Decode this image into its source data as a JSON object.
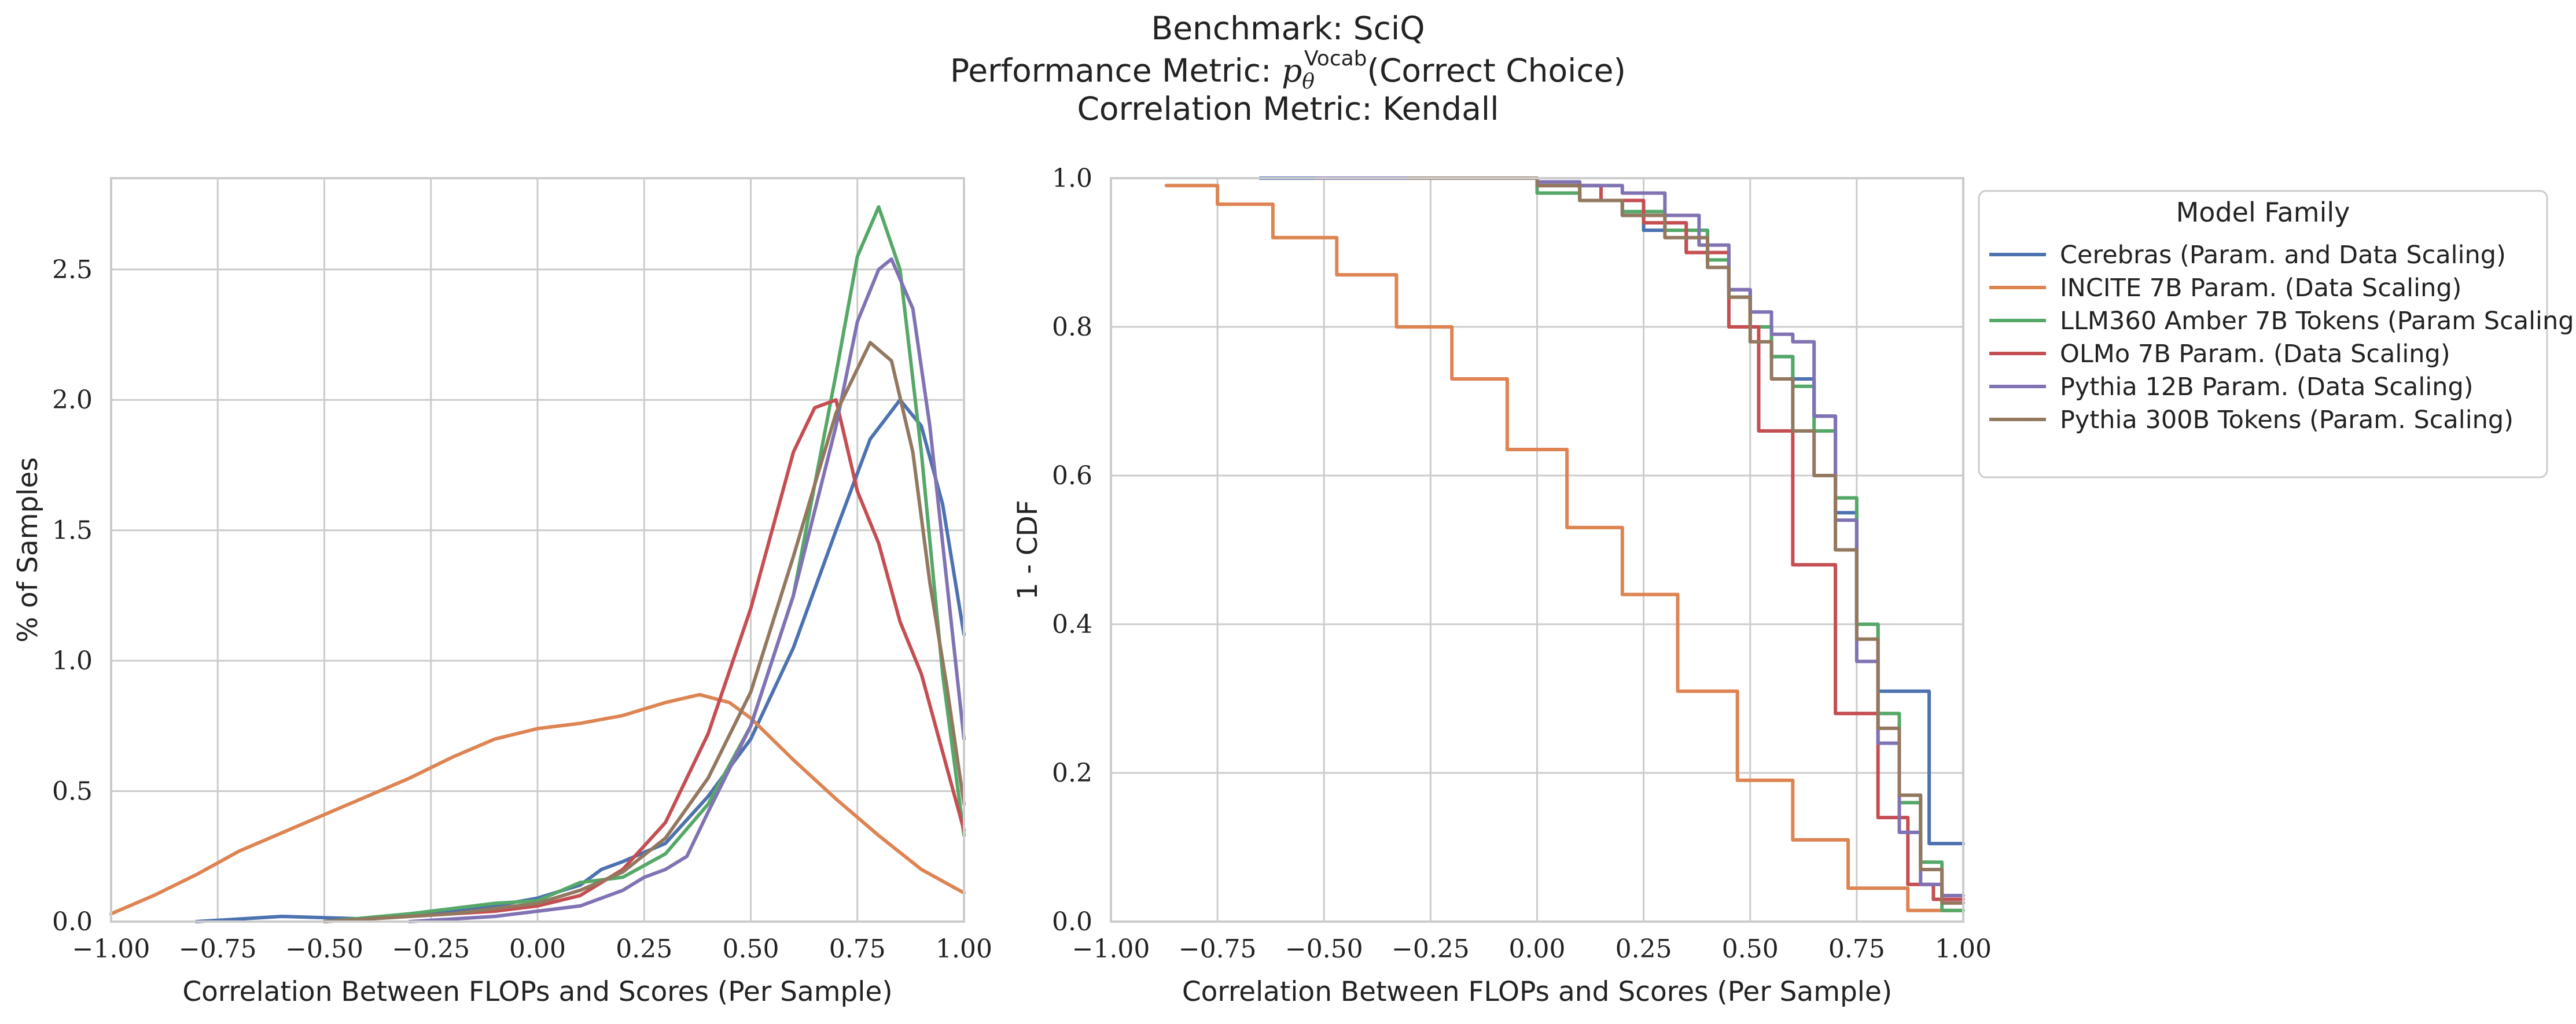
{
  "figure": {
    "title_lines": [
      "Benchmark: SciQ",
      "Performance Metric: p_θ^Vocab(Correct Choice)",
      "Correlation Metric: Kendall"
    ],
    "title_parts": {
      "line2_prefix": "Performance Metric: ",
      "symbol": "p",
      "subscript": "θ",
      "superscript": "Vocab",
      "line2_suffix": "(Correct Choice)"
    }
  },
  "legend": {
    "title": "Model Family",
    "placement": "right of second chart, top"
  },
  "chart_data": [
    {
      "type": "line",
      "name": "density",
      "xlabel": "Correlation Between FLOPs and Scores (Per Sample)",
      "ylabel": "% of Samples",
      "xlim": [
        -1.0,
        1.0
      ],
      "ylim": [
        0.0,
        2.85
      ],
      "xticks": [
        -1.0,
        -0.75,
        -0.5,
        -0.25,
        0.0,
        0.25,
        0.5,
        0.75,
        1.0
      ],
      "xtick_labels": [
        "−1.00",
        "−0.75",
        "−0.50",
        "−0.25",
        "0.00",
        "0.25",
        "0.50",
        "0.75",
        "1.00"
      ],
      "yticks": [
        0.0,
        0.5,
        1.0,
        1.5,
        2.0,
        2.5
      ],
      "ytick_labels": [
        "0.0",
        "0.5",
        "1.0",
        "1.5",
        "2.0",
        "2.5"
      ],
      "grid": true,
      "series": [
        {
          "name": "Cerebras (Param. and Data Scaling)",
          "color": "#4c72b0",
          "x": [
            -0.8,
            -0.6,
            -0.4,
            -0.2,
            -0.1,
            0.0,
            0.1,
            0.15,
            0.2,
            0.3,
            0.4,
            0.5,
            0.6,
            0.7,
            0.78,
            0.85,
            0.9,
            0.95,
            1.0
          ],
          "y": [
            0.0,
            0.02,
            0.01,
            0.04,
            0.06,
            0.09,
            0.14,
            0.2,
            0.23,
            0.3,
            0.48,
            0.7,
            1.05,
            1.5,
            1.85,
            2.0,
            1.9,
            1.6,
            1.1
          ]
        },
        {
          "name": "INCITE 7B Param. (Data Scaling)",
          "color": "#dd8452",
          "x": [
            -1.0,
            -0.9,
            -0.8,
            -0.7,
            -0.6,
            -0.5,
            -0.4,
            -0.3,
            -0.2,
            -0.1,
            0.0,
            0.1,
            0.2,
            0.3,
            0.38,
            0.45,
            0.5,
            0.6,
            0.7,
            0.8,
            0.9,
            1.0
          ],
          "y": [
            0.03,
            0.1,
            0.18,
            0.27,
            0.34,
            0.41,
            0.48,
            0.55,
            0.63,
            0.7,
            0.74,
            0.76,
            0.79,
            0.84,
            0.87,
            0.84,
            0.78,
            0.62,
            0.47,
            0.33,
            0.2,
            0.11
          ]
        },
        {
          "name": "LLM360 Amber 7B Tokens (Param Scaling)",
          "color": "#55a868",
          "x": [
            -0.5,
            -0.3,
            -0.2,
            -0.1,
            0.0,
            0.1,
            0.2,
            0.3,
            0.4,
            0.5,
            0.6,
            0.7,
            0.75,
            0.8,
            0.85,
            0.9,
            0.95,
            1.0
          ],
          "y": [
            0.0,
            0.03,
            0.05,
            0.07,
            0.08,
            0.15,
            0.17,
            0.26,
            0.45,
            0.75,
            1.25,
            2.1,
            2.55,
            2.74,
            2.5,
            1.8,
            0.95,
            0.33
          ]
        },
        {
          "name": "OLMo 7B Param. (Data Scaling)",
          "color": "#c44e52",
          "x": [
            -0.5,
            -0.3,
            -0.2,
            -0.1,
            0.0,
            0.1,
            0.2,
            0.3,
            0.4,
            0.5,
            0.6,
            0.65,
            0.7,
            0.75,
            0.8,
            0.85,
            0.9,
            0.95,
            1.0
          ],
          "y": [
            0.0,
            0.02,
            0.03,
            0.04,
            0.06,
            0.1,
            0.2,
            0.38,
            0.72,
            1.2,
            1.8,
            1.97,
            2.0,
            1.65,
            1.45,
            1.15,
            0.95,
            0.65,
            0.35
          ]
        },
        {
          "name": "Pythia 12B Param. (Data Scaling)",
          "color": "#8172b3",
          "x": [
            -0.3,
            -0.1,
            0.0,
            0.1,
            0.15,
            0.2,
            0.25,
            0.3,
            0.35,
            0.4,
            0.5,
            0.6,
            0.7,
            0.75,
            0.8,
            0.83,
            0.88,
            0.92,
            0.96,
            1.0
          ],
          "y": [
            0.0,
            0.02,
            0.04,
            0.06,
            0.09,
            0.12,
            0.17,
            0.2,
            0.25,
            0.42,
            0.75,
            1.25,
            1.9,
            2.3,
            2.5,
            2.54,
            2.35,
            1.9,
            1.3,
            0.7
          ]
        },
        {
          "name": "Pythia 300B Tokens (Param. Scaling)",
          "color": "#937860",
          "x": [
            -0.5,
            -0.3,
            -0.2,
            -0.1,
            0.0,
            0.1,
            0.2,
            0.3,
            0.4,
            0.5,
            0.6,
            0.7,
            0.78,
            0.83,
            0.88,
            0.92,
            0.96,
            1.0
          ],
          "y": [
            0.0,
            0.02,
            0.03,
            0.05,
            0.07,
            0.12,
            0.19,
            0.32,
            0.55,
            0.88,
            1.4,
            1.95,
            2.22,
            2.15,
            1.8,
            1.3,
            0.9,
            0.45
          ]
        }
      ]
    },
    {
      "type": "line",
      "name": "survival",
      "xlabel": "Correlation Between FLOPs and Scores (Per Sample)",
      "ylabel": "1 - CDF",
      "xlim": [
        -1.0,
        1.0
      ],
      "ylim": [
        0.0,
        1.0
      ],
      "xticks": [
        -1.0,
        -0.75,
        -0.5,
        -0.25,
        0.0,
        0.25,
        0.5,
        0.75,
        1.0
      ],
      "xtick_labels": [
        "−1.00",
        "−0.75",
        "−0.50",
        "−0.25",
        "0.00",
        "0.25",
        "0.50",
        "0.75",
        "1.00"
      ],
      "yticks": [
        0.0,
        0.2,
        0.4,
        0.6,
        0.8,
        1.0
      ],
      "ytick_labels": [
        "0.0",
        "0.2",
        "0.4",
        "0.6",
        "0.8",
        "1.0"
      ],
      "grid": true,
      "series": [
        {
          "name": "Cerebras (Param. and Data Scaling)",
          "color": "#4c72b0",
          "x": [
            -0.65,
            0.0,
            0.1,
            0.2,
            0.25,
            0.35,
            0.45,
            0.5,
            0.55,
            0.6,
            0.65,
            0.7,
            0.75,
            0.8,
            0.85,
            0.92,
            1.0
          ],
          "y": [
            1.0,
            0.99,
            0.97,
            0.95,
            0.93,
            0.9,
            0.85,
            0.8,
            0.76,
            0.73,
            0.68,
            0.55,
            0.4,
            0.31,
            0.31,
            0.105,
            0.105
          ]
        },
        {
          "name": "INCITE 7B Param. (Data Scaling)",
          "color": "#dd8452",
          "x": [
            -0.87,
            -0.75,
            -0.62,
            -0.47,
            -0.33,
            -0.25,
            -0.2,
            -0.12,
            -0.07,
            0.07,
            0.2,
            0.33,
            0.47,
            0.6,
            0.73,
            0.87,
            0.93,
            1.0
          ],
          "y": [
            0.99,
            0.965,
            0.92,
            0.87,
            0.8,
            0.8,
            0.73,
            0.73,
            0.635,
            0.53,
            0.44,
            0.31,
            0.19,
            0.11,
            0.045,
            0.015,
            0.015,
            0.015
          ]
        },
        {
          "name": "LLM360 Amber 7B Tokens (Param Scaling)",
          "color": "#55a868",
          "x": [
            -0.3,
            0.0,
            0.1,
            0.2,
            0.3,
            0.4,
            0.45,
            0.5,
            0.55,
            0.6,
            0.65,
            0.7,
            0.75,
            0.8,
            0.85,
            0.9,
            0.95,
            1.0
          ],
          "y": [
            1.0,
            0.98,
            0.97,
            0.955,
            0.93,
            0.89,
            0.84,
            0.8,
            0.76,
            0.72,
            0.66,
            0.57,
            0.4,
            0.28,
            0.16,
            0.08,
            0.015,
            0.015
          ]
        },
        {
          "name": "OLMo 7B Param. (Data Scaling)",
          "color": "#c44e52",
          "x": [
            -0.3,
            0.0,
            0.15,
            0.25,
            0.35,
            0.45,
            0.52,
            0.6,
            0.7,
            0.8,
            0.87,
            0.93,
            1.0
          ],
          "y": [
            1.0,
            0.99,
            0.97,
            0.94,
            0.9,
            0.8,
            0.66,
            0.48,
            0.28,
            0.14,
            0.05,
            0.03,
            0.03
          ]
        },
        {
          "name": "Pythia 12B Param. (Data Scaling)",
          "color": "#8172b3",
          "x": [
            -0.52,
            0.0,
            0.1,
            0.2,
            0.3,
            0.38,
            0.45,
            0.5,
            0.55,
            0.6,
            0.65,
            0.7,
            0.75,
            0.8,
            0.85,
            0.9,
            0.95,
            1.0
          ],
          "y": [
            1.0,
            0.995,
            0.99,
            0.98,
            0.95,
            0.91,
            0.85,
            0.82,
            0.79,
            0.78,
            0.68,
            0.54,
            0.35,
            0.24,
            0.12,
            0.05,
            0.035,
            0.035
          ]
        },
        {
          "name": "Pythia 300B Tokens (Param. Scaling)",
          "color": "#937860",
          "x": [
            -0.3,
            0.0,
            0.1,
            0.2,
            0.3,
            0.4,
            0.45,
            0.5,
            0.55,
            0.6,
            0.65,
            0.7,
            0.75,
            0.8,
            0.85,
            0.9,
            0.95,
            1.0
          ],
          "y": [
            1.0,
            0.99,
            0.97,
            0.95,
            0.92,
            0.88,
            0.84,
            0.78,
            0.73,
            0.66,
            0.6,
            0.5,
            0.38,
            0.26,
            0.17,
            0.07,
            0.025,
            0.025
          ]
        }
      ]
    }
  ]
}
